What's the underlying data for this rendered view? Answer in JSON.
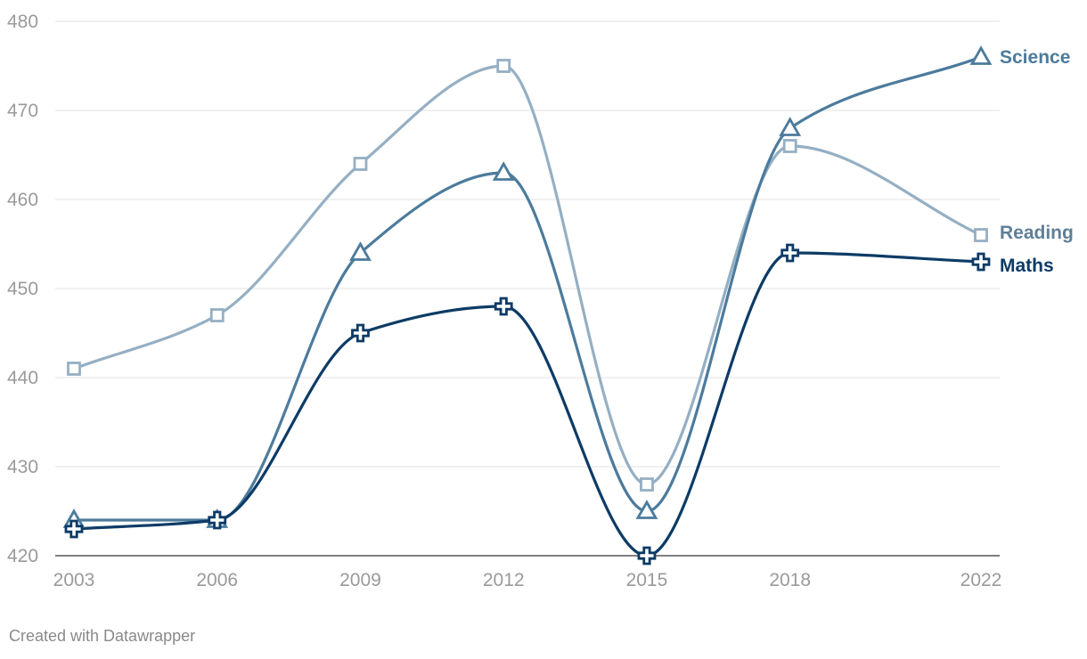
{
  "chart_data": {
    "type": "line",
    "title": "",
    "xlabel": "",
    "ylabel": "",
    "x": [
      "2003",
      "2006",
      "2009",
      "2012",
      "2015",
      "2018",
      "2022"
    ],
    "x_values": [
      2003,
      2006,
      2009,
      2012,
      2015,
      2018,
      2022
    ],
    "ylim": [
      420,
      480
    ],
    "yticks": [
      420,
      430,
      440,
      450,
      460,
      470,
      480
    ],
    "grid": true,
    "series": [
      {
        "name": "Reading",
        "marker": "square",
        "color": "#95afc3",
        "values": [
          441,
          447,
          464,
          475,
          428,
          466,
          456
        ]
      },
      {
        "name": "Science",
        "marker": "triangle",
        "color": "#4c7b9c",
        "values": [
          424,
          424,
          454,
          463,
          425,
          468,
          476
        ]
      },
      {
        "name": "Maths",
        "marker": "plus",
        "color": "#0d3b66",
        "values": [
          423,
          424,
          445,
          448,
          420,
          454,
          453
        ]
      }
    ],
    "label_colors": {
      "Reading": "#5f7f96",
      "Science": "#4c7b9c",
      "Maths": "#0d3b66"
    }
  },
  "footer": {
    "credit": "Created with Datawrapper"
  }
}
